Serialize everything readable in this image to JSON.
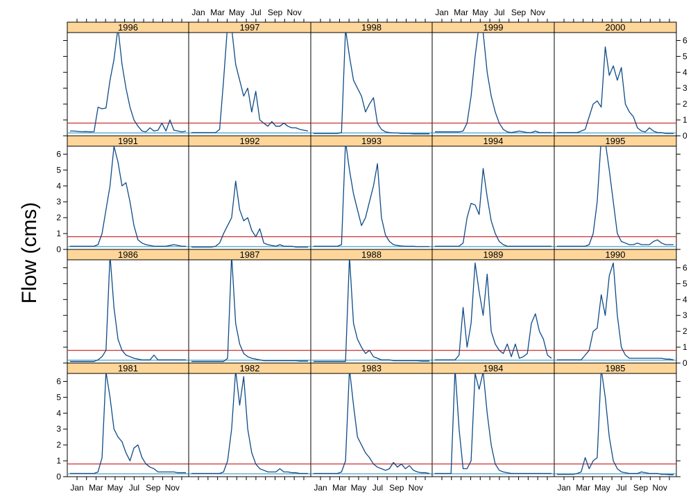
{
  "chart_data": {
    "type": "line",
    "layout": "lattice small multiples, 5 columns x 4 rows",
    "ylabel": "Flow (cms)",
    "xlabel": "",
    "ylim": [
      0,
      6.5
    ],
    "y_ticks": [
      0,
      1,
      2,
      3,
      4,
      5,
      6
    ],
    "x_tick_labels": [
      "Jan",
      "Mar",
      "May",
      "Jul",
      "Sep",
      "Nov"
    ],
    "x_minor_ticks_per_year": 12,
    "reference_lines": [
      {
        "value": 0.8,
        "color": "#cc3333"
      },
      {
        "value": 0.18,
        "color": "#4aa3c8"
      }
    ],
    "colors": {
      "line": "#0d4a87",
      "strip": "#ffd699",
      "frame": "#000000"
    },
    "panels": [
      {
        "year": "1996",
        "values": [
          0.3,
          0.3,
          0.28,
          0.26,
          0.27,
          0.25,
          0.26,
          1.8,
          1.7,
          1.75,
          3.5,
          4.8,
          6.8,
          4.5,
          3.0,
          1.8,
          1.0,
          0.6,
          0.3,
          0.25,
          0.5,
          0.3,
          0.35,
          0.8,
          0.3,
          1.0,
          0.35,
          0.3,
          0.25,
          0.3
        ]
      },
      {
        "year": "1997",
        "values": [
          0.2,
          0.2,
          0.2,
          0.2,
          0.2,
          0.2,
          0.2,
          0.4,
          3.5,
          7.0,
          6.8,
          4.5,
          3.5,
          2.5,
          3.0,
          1.5,
          2.8,
          1.0,
          0.8,
          0.6,
          0.9,
          0.6,
          0.6,
          0.8,
          0.6,
          0.5,
          0.5,
          0.4,
          0.35,
          0.3
        ]
      },
      {
        "year": "1998",
        "values": [
          0.15,
          0.15,
          0.15,
          0.15,
          0.15,
          0.15,
          0.15,
          0.2,
          6.7,
          5.0,
          3.5,
          3.0,
          2.5,
          1.5,
          2.0,
          2.4,
          0.8,
          0.4,
          0.25,
          0.2,
          0.18,
          0.18,
          0.15,
          0.15,
          0.15,
          0.12,
          0.12,
          0.12,
          0.12,
          0.12
        ]
      },
      {
        "year": "1999",
        "values": [
          0.25,
          0.25,
          0.25,
          0.25,
          0.25,
          0.25,
          0.25,
          0.3,
          0.8,
          2.5,
          5.0,
          7.0,
          6.5,
          4.0,
          2.5,
          1.5,
          0.8,
          0.4,
          0.25,
          0.2,
          0.25,
          0.3,
          0.25,
          0.2,
          0.2,
          0.3,
          0.2,
          0.2,
          0.2,
          0.2
        ]
      },
      {
        "year": "2000",
        "values": [
          0.2,
          0.2,
          0.2,
          0.2,
          0.2,
          0.2,
          0.3,
          0.4,
          1.2,
          2.0,
          2.2,
          1.8,
          5.6,
          3.8,
          4.4,
          3.5,
          4.3,
          2.0,
          1.5,
          1.2,
          0.5,
          0.3,
          0.25,
          0.5,
          0.3,
          0.2,
          0.2,
          0.15,
          0.15,
          0.15
        ]
      },
      {
        "year": "1991",
        "values": [
          0.2,
          0.2,
          0.2,
          0.2,
          0.2,
          0.2,
          0.2,
          0.3,
          1.0,
          2.5,
          4.0,
          6.5,
          5.5,
          4.0,
          4.2,
          3.0,
          1.5,
          0.6,
          0.4,
          0.3,
          0.25,
          0.2,
          0.2,
          0.2,
          0.2,
          0.25,
          0.3,
          0.25,
          0.2,
          0.2
        ]
      },
      {
        "year": "1992",
        "values": [
          0.15,
          0.15,
          0.15,
          0.15,
          0.15,
          0.15,
          0.2,
          0.4,
          1.0,
          1.5,
          2.0,
          4.3,
          2.5,
          1.8,
          2.0,
          1.2,
          0.8,
          1.3,
          0.4,
          0.3,
          0.25,
          0.2,
          0.3,
          0.2,
          0.2,
          0.2,
          0.15,
          0.15,
          0.15,
          0.15
        ]
      },
      {
        "year": "1993",
        "values": [
          0.2,
          0.2,
          0.2,
          0.2,
          0.2,
          0.2,
          0.2,
          0.3,
          6.8,
          5.0,
          3.5,
          2.5,
          1.5,
          2.0,
          3.0,
          4.0,
          5.4,
          2.0,
          0.9,
          0.5,
          0.3,
          0.25,
          0.22,
          0.2,
          0.2,
          0.2,
          0.18,
          0.18,
          0.18,
          0.18
        ]
      },
      {
        "year": "1994",
        "values": [
          0.2,
          0.2,
          0.2,
          0.2,
          0.2,
          0.2,
          0.2,
          0.4,
          2.0,
          2.9,
          2.8,
          2.2,
          5.1,
          3.3,
          1.8,
          1.0,
          0.5,
          0.3,
          0.2,
          0.2,
          0.2,
          0.2,
          0.2,
          0.2,
          0.2,
          0.2,
          0.2,
          0.2,
          0.2,
          0.2
        ]
      },
      {
        "year": "1995",
        "values": [
          0.2,
          0.2,
          0.2,
          0.2,
          0.2,
          0.2,
          0.2,
          0.2,
          0.3,
          1.0,
          3.0,
          7.0,
          6.8,
          5.0,
          3.0,
          1.0,
          0.5,
          0.4,
          0.3,
          0.3,
          0.4,
          0.3,
          0.3,
          0.3,
          0.5,
          0.6,
          0.4,
          0.3,
          0.3,
          0.3
        ]
      },
      {
        "year": "1986",
        "values": [
          0.1,
          0.1,
          0.1,
          0.1,
          0.1,
          0.1,
          0.1,
          0.2,
          0.4,
          0.8,
          6.8,
          3.5,
          1.5,
          0.8,
          0.5,
          0.4,
          0.3,
          0.25,
          0.2,
          0.2,
          0.2,
          0.5,
          0.2,
          0.2,
          0.2,
          0.2,
          0.2,
          0.2,
          0.2,
          0.2
        ]
      },
      {
        "year": "1987",
        "values": [
          0.1,
          0.1,
          0.1,
          0.1,
          0.1,
          0.1,
          0.1,
          0.1,
          0.1,
          0.3,
          6.8,
          2.5,
          1.2,
          0.6,
          0.4,
          0.3,
          0.25,
          0.2,
          0.15,
          0.15,
          0.15,
          0.15,
          0.15,
          0.15,
          0.15,
          0.15,
          0.15,
          0.12,
          0.12,
          0.12
        ]
      },
      {
        "year": "1988",
        "values": [
          0.1,
          0.1,
          0.1,
          0.1,
          0.1,
          0.1,
          0.1,
          0.1,
          0.1,
          6.7,
          2.5,
          1.5,
          1.0,
          0.6,
          0.8,
          0.4,
          0.3,
          0.2,
          0.2,
          0.2,
          0.15,
          0.15,
          0.15,
          0.15,
          0.15,
          0.15,
          0.15,
          0.12,
          0.12,
          0.12
        ]
      },
      {
        "year": "1989",
        "values": [
          0.2,
          0.2,
          0.2,
          0.2,
          0.2,
          0.2,
          0.5,
          3.5,
          1.0,
          2.5,
          6.3,
          4.5,
          3.0,
          5.6,
          2.0,
          1.2,
          0.8,
          0.6,
          1.2,
          0.4,
          1.2,
          0.3,
          0.4,
          0.6,
          2.5,
          3.1,
          2.0,
          1.5,
          0.5,
          0.3
        ]
      },
      {
        "year": "1990",
        "values": [
          0.2,
          0.2,
          0.2,
          0.2,
          0.2,
          0.2,
          0.2,
          0.5,
          0.8,
          2.0,
          2.2,
          4.3,
          3.0,
          5.5,
          6.3,
          3.0,
          1.0,
          0.5,
          0.3,
          0.3,
          0.3,
          0.3,
          0.3,
          0.3,
          0.3,
          0.3,
          0.3,
          0.25,
          0.25,
          0.2
        ]
      },
      {
        "year": "1981",
        "values": [
          0.2,
          0.2,
          0.2,
          0.2,
          0.2,
          0.2,
          0.2,
          0.3,
          1.2,
          6.6,
          5.0,
          3.0,
          2.5,
          2.2,
          1.5,
          1.0,
          1.8,
          2.0,
          1.2,
          0.8,
          0.6,
          0.5,
          0.3,
          0.3,
          0.3,
          0.3,
          0.3,
          0.25,
          0.25,
          0.25
        ]
      },
      {
        "year": "1982",
        "values": [
          0.2,
          0.2,
          0.2,
          0.2,
          0.2,
          0.2,
          0.2,
          0.2,
          0.3,
          1.0,
          3.0,
          6.7,
          4.5,
          6.3,
          3.0,
          1.5,
          0.8,
          0.5,
          0.4,
          0.3,
          0.3,
          0.3,
          0.5,
          0.3,
          0.3,
          0.25,
          0.25,
          0.2,
          0.2,
          0.2
        ]
      },
      {
        "year": "1983",
        "values": [
          0.2,
          0.2,
          0.2,
          0.2,
          0.2,
          0.2,
          0.2,
          0.3,
          1.0,
          6.8,
          4.5,
          2.5,
          2.0,
          1.5,
          1.2,
          0.8,
          0.6,
          0.5,
          0.4,
          0.5,
          0.9,
          0.6,
          0.8,
          0.5,
          0.7,
          0.4,
          0.3,
          0.25,
          0.25,
          0.2
        ]
      },
      {
        "year": "1984",
        "values": [
          0.2,
          0.2,
          0.2,
          0.2,
          0.2,
          6.8,
          3.0,
          0.5,
          0.5,
          1.0,
          6.5,
          5.5,
          6.6,
          4.0,
          2.0,
          0.8,
          0.4,
          0.3,
          0.25,
          0.2,
          0.2,
          0.2,
          0.2,
          0.2,
          0.2,
          0.2,
          0.2,
          0.2,
          0.2,
          0.2
        ]
      },
      {
        "year": "1985",
        "values": [
          0.15,
          0.15,
          0.15,
          0.15,
          0.15,
          0.2,
          0.3,
          1.2,
          0.5,
          1.0,
          1.2,
          6.8,
          5.0,
          2.5,
          1.0,
          0.5,
          0.3,
          0.25,
          0.2,
          0.2,
          0.2,
          0.3,
          0.25,
          0.2,
          0.2,
          0.2,
          0.15,
          0.15,
          0.12,
          0.12
        ]
      }
    ]
  }
}
